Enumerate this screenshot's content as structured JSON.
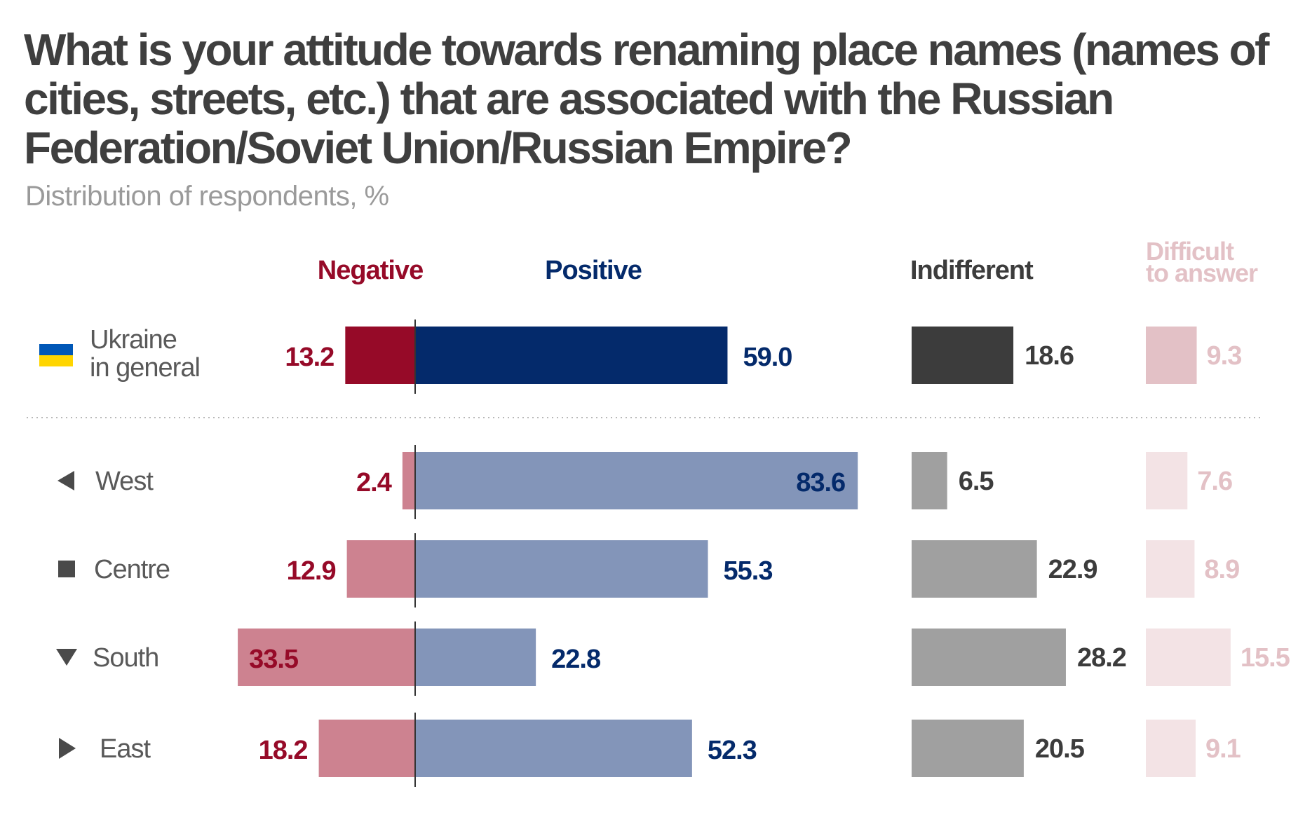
{
  "chart_data": {
    "type": "bar",
    "title": "What is your attitude towards renaming place names (names of cities, streets, etc.) that are associated with the Russian Federation/Soviet Union/Russian Empire?",
    "subtitle": "Distribution of respondents, %",
    "categories": [
      "Ukraine in general",
      "West",
      "Centre",
      "South",
      "East"
    ],
    "category_lines": [
      [
        "Ukraine",
        "in general"
      ],
      [
        "West"
      ],
      [
        "Centre"
      ],
      [
        "South"
      ],
      [
        "East"
      ]
    ],
    "series": [
      {
        "name": "Negative",
        "values": [
          13.2,
          2.4,
          12.9,
          33.5,
          18.2
        ]
      },
      {
        "name": "Positive",
        "values": [
          59.0,
          83.6,
          55.3,
          22.8,
          52.3
        ]
      },
      {
        "name": "Indifferent",
        "values": [
          18.6,
          6.5,
          22.9,
          28.2,
          20.5
        ]
      },
      {
        "name": "Difficult to answer",
        "values": [
          9.3,
          7.6,
          8.9,
          15.5,
          9.1
        ]
      }
    ],
    "legend_lines": {
      "difficult": [
        "Difficult",
        "to answer"
      ]
    },
    "labels": [
      [
        "13.2",
        "59.0",
        "18.6",
        "9.3"
      ],
      [
        "2.4",
        "83.6",
        "6.5",
        "7.6"
      ],
      [
        "12.9",
        "55.3",
        "22.9",
        "8.9"
      ],
      [
        "33.5",
        "22.8",
        "28.2",
        "15.5"
      ],
      [
        "18.2",
        "52.3",
        "20.5",
        "9.1"
      ]
    ],
    "colors": {
      "negative_total": "#960a28",
      "negative_region": "#cd8290",
      "positive_total": "#042a6b",
      "positive_region": "#8395b9",
      "indifferent_total": "#3c3c3c",
      "indifferent_region": "#a0a0a0",
      "difficult_total": "#e3c1c6",
      "difficult_region": "#f3e3e5",
      "negative_text": "#960a28",
      "positive_text": "#042a6b",
      "indifferent_text": "#3c3c3c",
      "difficult_text": "#e3c1c6",
      "category_text": "#595959",
      "marker": "#4a4a4a",
      "flag_blue": "#0057b7",
      "flag_yellow": "#ffd500"
    },
    "region_markers": [
      "flag",
      "triangle-left",
      "square",
      "triangle-down",
      "triangle-right"
    ]
  }
}
